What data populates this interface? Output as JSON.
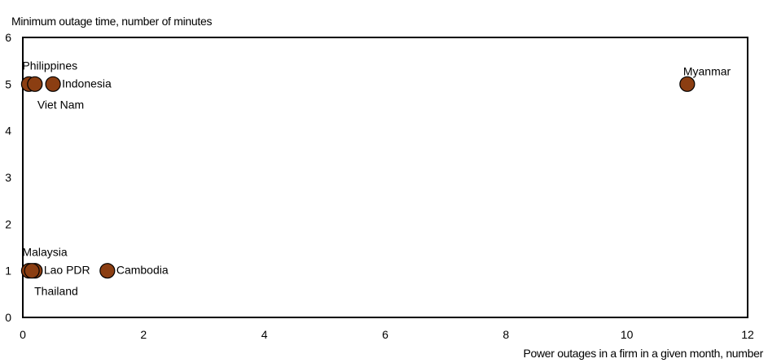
{
  "chart_data": {
    "type": "scatter",
    "xlabel": "Power outages in a firm in a given month, number",
    "ylabel": "Minimum outage time, number of minutes",
    "xlim": [
      0,
      12
    ],
    "ylim": [
      0,
      6
    ],
    "xticks": [
      0,
      2,
      4,
      6,
      8,
      10,
      12
    ],
    "yticks": [
      0,
      1,
      2,
      3,
      4,
      5,
      6
    ],
    "grid": false,
    "marker_color": "#8B3E12",
    "marker_edge_color": "#000000",
    "points": [
      {
        "label": "Philippines",
        "x": 0.1,
        "y": 5,
        "label_pos": "above"
      },
      {
        "label": "Viet Nam",
        "x": 0.2,
        "y": 5,
        "label_pos": "below"
      },
      {
        "label": "Indonesia",
        "x": 0.5,
        "y": 5,
        "label_pos": "right"
      },
      {
        "label": "Myanmar",
        "x": 11.0,
        "y": 5,
        "label_pos": "above"
      },
      {
        "label": "Malaysia",
        "x": 0.1,
        "y": 1,
        "label_pos": "above"
      },
      {
        "label": "Lao PDR",
        "x": 0.2,
        "y": 1,
        "label_pos": "right"
      },
      {
        "label": "Thailand",
        "x": 0.15,
        "y": 1,
        "label_pos": "below"
      },
      {
        "label": "Cambodia",
        "x": 1.4,
        "y": 1,
        "label_pos": "right"
      }
    ]
  }
}
